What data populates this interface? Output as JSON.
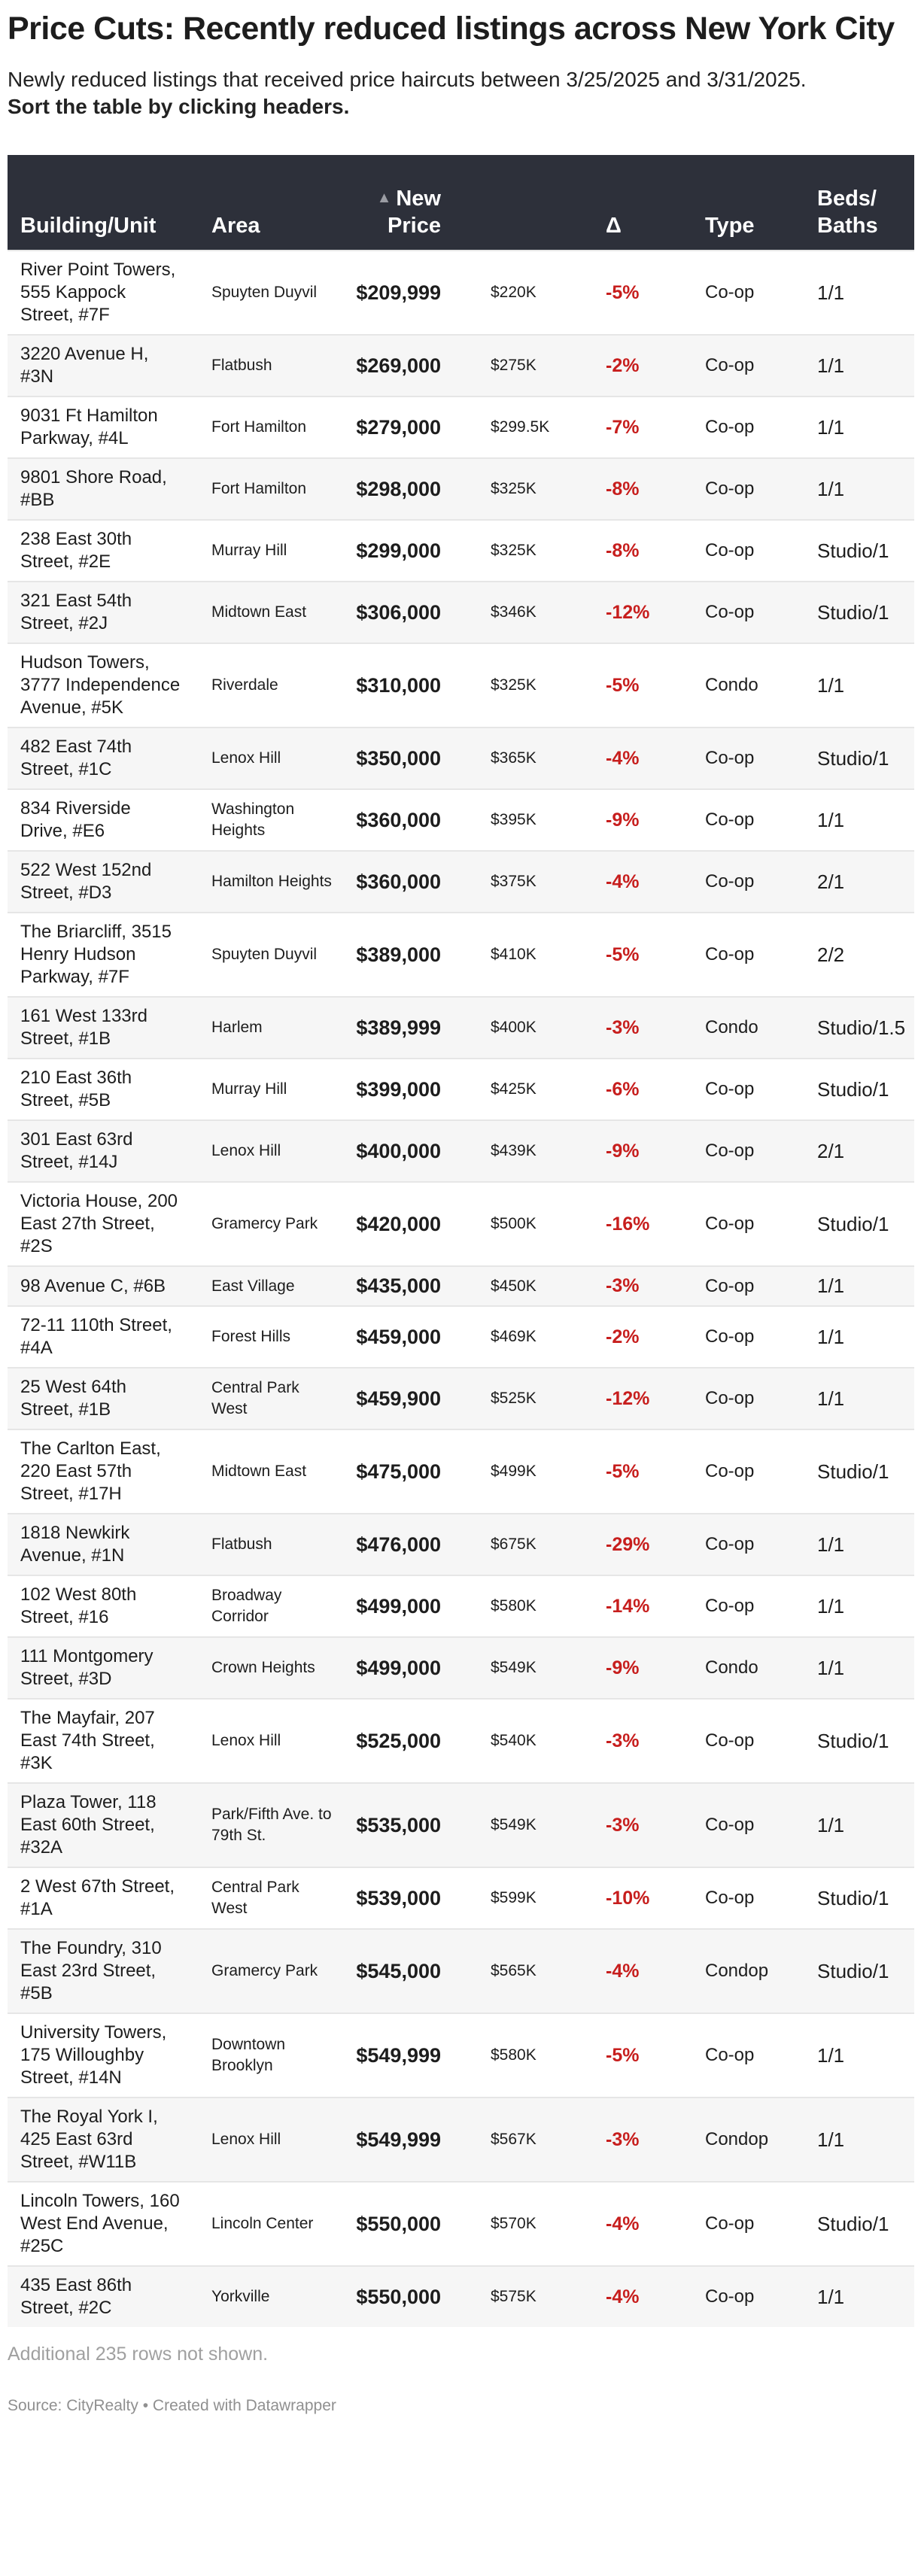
{
  "title": "Price Cuts: Recently reduced listings across New York City",
  "description": "Newly reduced listings that received price haircuts between 3/25/2025 and 3/31/2025.",
  "instruction": "Sort the table by clicking headers.",
  "colors": {
    "header_bg": "#2d303a",
    "delta": "#c71e1d",
    "stripe": "#f6f6f6"
  },
  "table": {
    "sort_icon": "triangle-up-icon",
    "sorted_column": "New Price",
    "sort_direction": "ascending",
    "headers": {
      "building": "Building/Unit",
      "area": "Area",
      "price": "New Price",
      "old": "",
      "delta": "Δ",
      "type": "Type",
      "beds": "Beds/ Baths"
    },
    "rows": [
      [
        "River Point Towers, 555 Kappock Street, #7F",
        "Spuyten Duyvil",
        "$209,999",
        "$220K",
        "-5%",
        "Co-op",
        "1/1"
      ],
      [
        "3220 Avenue H, #3N",
        "Flatbush",
        "$269,000",
        "$275K",
        "-2%",
        "Co-op",
        "1/1"
      ],
      [
        "9031 Ft Hamilton Parkway, #4L",
        "Fort Hamilton",
        "$279,000",
        "$299.5K",
        "-7%",
        "Co-op",
        "1/1"
      ],
      [
        "9801 Shore Road, #BB",
        "Fort Hamilton",
        "$298,000",
        "$325K",
        "-8%",
        "Co-op",
        "1/1"
      ],
      [
        "238 East 30th Street, #2E",
        "Murray Hill",
        "$299,000",
        "$325K",
        "-8%",
        "Co-op",
        "Studio/1"
      ],
      [
        "321 East 54th Street, #2J",
        "Midtown East",
        "$306,000",
        "$346K",
        "-12%",
        "Co-op",
        "Studio/1"
      ],
      [
        "Hudson Towers, 3777 Independence Avenue, #5K",
        "Riverdale",
        "$310,000",
        "$325K",
        "-5%",
        "Condo",
        "1/1"
      ],
      [
        "482 East 74th Street, #1C",
        "Lenox Hill",
        "$350,000",
        "$365K",
        "-4%",
        "Co-op",
        "Studio/1"
      ],
      [
        "834 Riverside Drive, #E6",
        "Washington Heights",
        "$360,000",
        "$395K",
        "-9%",
        "Co-op",
        "1/1"
      ],
      [
        "522 West 152nd Street, #D3",
        "Hamilton Heights",
        "$360,000",
        "$375K",
        "-4%",
        "Co-op",
        "2/1"
      ],
      [
        "The Briarcliff, 3515 Henry Hudson Parkway, #7F",
        "Spuyten Duyvil",
        "$389,000",
        "$410K",
        "-5%",
        "Co-op",
        "2/2"
      ],
      [
        "161 West 133rd Street, #1B",
        "Harlem",
        "$389,999",
        "$400K",
        "-3%",
        "Condo",
        "Studio/1.5"
      ],
      [
        "210 East 36th Street, #5B",
        "Murray Hill",
        "$399,000",
        "$425K",
        "-6%",
        "Co-op",
        "Studio/1"
      ],
      [
        "301 East 63rd Street, #14J",
        "Lenox Hill",
        "$400,000",
        "$439K",
        "-9%",
        "Co-op",
        "2/1"
      ],
      [
        "Victoria House, 200 East 27th Street, #2S",
        "Gramercy Park",
        "$420,000",
        "$500K",
        "-16%",
        "Co-op",
        "Studio/1"
      ],
      [
        "98 Avenue C, #6B",
        "East Village",
        "$435,000",
        "$450K",
        "-3%",
        "Co-op",
        "1/1"
      ],
      [
        "72-11 110th Street, #4A",
        "Forest Hills",
        "$459,000",
        "$469K",
        "-2%",
        "Co-op",
        "1/1"
      ],
      [
        "25 West 64th Street, #1B",
        "Central Park West",
        "$459,900",
        "$525K",
        "-12%",
        "Co-op",
        "1/1"
      ],
      [
        "The Carlton East, 220 East 57th Street, #17H",
        "Midtown East",
        "$475,000",
        "$499K",
        "-5%",
        "Co-op",
        "Studio/1"
      ],
      [
        "1818 Newkirk Avenue, #1N",
        "Flatbush",
        "$476,000",
        "$675K",
        "-29%",
        "Co-op",
        "1/1"
      ],
      [
        "102 West 80th Street, #16",
        "Broadway Corridor",
        "$499,000",
        "$580K",
        "-14%",
        "Co-op",
        "1/1"
      ],
      [
        "111 Montgomery Street, #3D",
        "Crown Heights",
        "$499,000",
        "$549K",
        "-9%",
        "Condo",
        "1/1"
      ],
      [
        "The Mayfair, 207 East 74th Street, #3K",
        "Lenox Hill",
        "$525,000",
        "$540K",
        "-3%",
        "Co-op",
        "Studio/1"
      ],
      [
        "Plaza Tower, 118 East 60th Street, #32A",
        "Park/Fifth Ave. to 79th St.",
        "$535,000",
        "$549K",
        "-3%",
        "Co-op",
        "1/1"
      ],
      [
        "2 West 67th Street, #1A",
        "Central Park West",
        "$539,000",
        "$599K",
        "-10%",
        "Co-op",
        "Studio/1"
      ],
      [
        "The Foundry, 310 East 23rd Street, #5B",
        "Gramercy Park",
        "$545,000",
        "$565K",
        "-4%",
        "Condop",
        "Studio/1"
      ],
      [
        "University Towers, 175 Willoughby Street, #14N",
        "Downtown Brooklyn",
        "$549,999",
        "$580K",
        "-5%",
        "Co-op",
        "1/1"
      ],
      [
        "The Royal York I, 425 East 63rd Street, #W11B",
        "Lenox Hill",
        "$549,999",
        "$567K",
        "-3%",
        "Condop",
        "1/1"
      ],
      [
        "Lincoln Towers, 160 West End Avenue, #25C",
        "Lincoln Center",
        "$550,000",
        "$570K",
        "-4%",
        "Co-op",
        "Studio/1"
      ],
      [
        "435 East 86th Street, #2C",
        "Yorkville",
        "$550,000",
        "$575K",
        "-4%",
        "Co-op",
        "1/1"
      ]
    ]
  },
  "footer": {
    "more_rows": "Additional 235 rows not shown.",
    "source": "Source: CityRealty • Created with Datawrapper"
  }
}
